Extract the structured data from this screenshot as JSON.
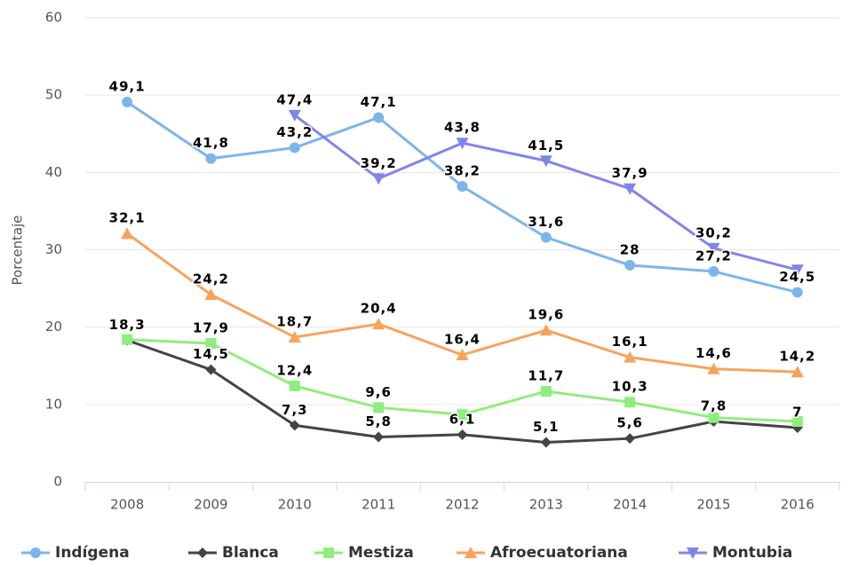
{
  "chart_data": {
    "type": "line",
    "y_label": "Porcentaje",
    "categories": [
      "2008",
      "2009",
      "2010",
      "2011",
      "2012",
      "2013",
      "2014",
      "2015",
      "2016"
    ],
    "ylim": [
      0,
      60
    ],
    "yticks": [
      0,
      10,
      20,
      30,
      40,
      50,
      60
    ],
    "grid": true,
    "series": [
      {
        "name": "Indígena",
        "color": "#7cb5ec",
        "marker": "circle",
        "values": [
          49.1,
          41.8,
          43.2,
          47.1,
          38.2,
          31.6,
          28,
          27.2,
          24.5
        ],
        "value_labels": [
          "49,1",
          "41,8",
          "43,2",
          "47,1",
          "38,2",
          "31,6",
          "28",
          "27,2",
          "24,5"
        ]
      },
      {
        "name": "Blanca",
        "color": "#434348",
        "marker": "diamond",
        "values": [
          18.3,
          14.5,
          7.3,
          5.8,
          6.1,
          5.1,
          5.6,
          7.8,
          7
        ],
        "value_labels": [
          "18,3",
          "14,5",
          "7,3",
          "5,8",
          "6,1",
          "5,1",
          "5,6",
          "7,8",
          "7"
        ]
      },
      {
        "name": "Mestiza",
        "color": "#90ed7d",
        "marker": "square",
        "values": [
          18.4,
          17.9,
          12.4,
          9.6,
          8.7,
          11.7,
          10.3,
          8.3,
          7.8
        ],
        "value_labels": [
          null,
          "17,9",
          "12,4",
          "9,6",
          null,
          "11,7",
          "10,3",
          null,
          null
        ]
      },
      {
        "name": "Afroecuatoriana",
        "color": "#f7a35c",
        "marker": "triangle",
        "values": [
          32.1,
          24.2,
          18.7,
          20.4,
          16.4,
          19.6,
          16.1,
          14.6,
          14.2
        ],
        "value_labels": [
          "32,1",
          "24,2",
          "18,7",
          "20,4",
          "16,4",
          "19,6",
          "16,1",
          "14,6",
          "14,2"
        ]
      },
      {
        "name": "Montubia",
        "color": "#8085e9",
        "marker": "triangle-down",
        "values": [
          null,
          null,
          47.4,
          39.2,
          43.8,
          41.5,
          37.9,
          30.2,
          27.4
        ],
        "value_labels": [
          null,
          null,
          "47,4",
          "39,2",
          "43,8",
          "41,5",
          "37,9",
          "30,2",
          null
        ]
      }
    ]
  }
}
